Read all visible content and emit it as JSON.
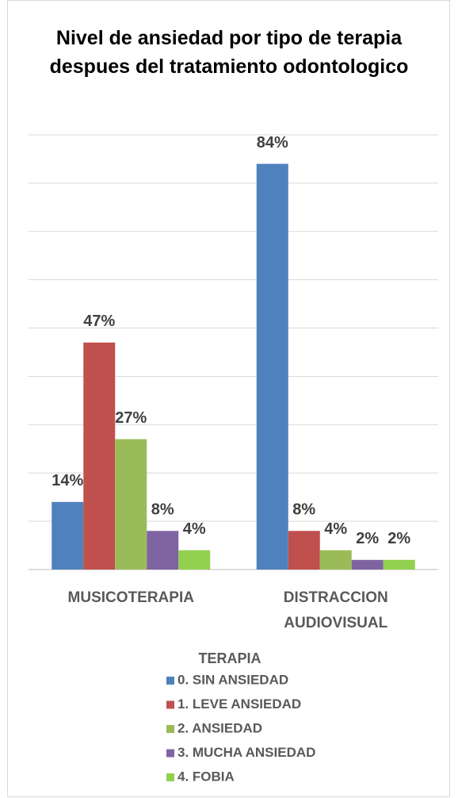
{
  "chart_data": {
    "type": "bar",
    "title": "Nivel de ansiedad por tipo de terapia despues del tratamiento odontologico",
    "xlabel": "TERAPIA",
    "categories": [
      "MUSICOTERAPIA",
      "DISTRACCION AUDIOVISUAL"
    ],
    "series": [
      {
        "name": "0. SIN ANSIEDAD",
        "color": "#4f81bd",
        "values": [
          14,
          84
        ],
        "value_labels": [
          "14%",
          "84%"
        ]
      },
      {
        "name": "1. LEVE ANSIEDAD",
        "color": "#c0504d",
        "values": [
          47,
          8
        ],
        "value_labels": [
          "47%",
          "8%"
        ]
      },
      {
        "name": "2. ANSIEDAD",
        "color": "#9bbb59",
        "values": [
          27,
          4
        ],
        "value_labels": [
          "27%",
          "4%"
        ]
      },
      {
        "name": "3. MUCHA ANSIEDAD",
        "color": "#8064a2",
        "values": [
          8,
          2
        ],
        "value_labels": [
          "8%",
          "2%"
        ]
      },
      {
        "name": "4. FOBIA",
        "color": "#92d050",
        "values": [
          4,
          2
        ],
        "value_labels": [
          "4%",
          "2%"
        ]
      }
    ],
    "ylim": [
      0,
      90
    ],
    "yticks": [
      0,
      10,
      20,
      30,
      40,
      50,
      60,
      70,
      80,
      90
    ],
    "grid": true,
    "legend": "bottom"
  }
}
